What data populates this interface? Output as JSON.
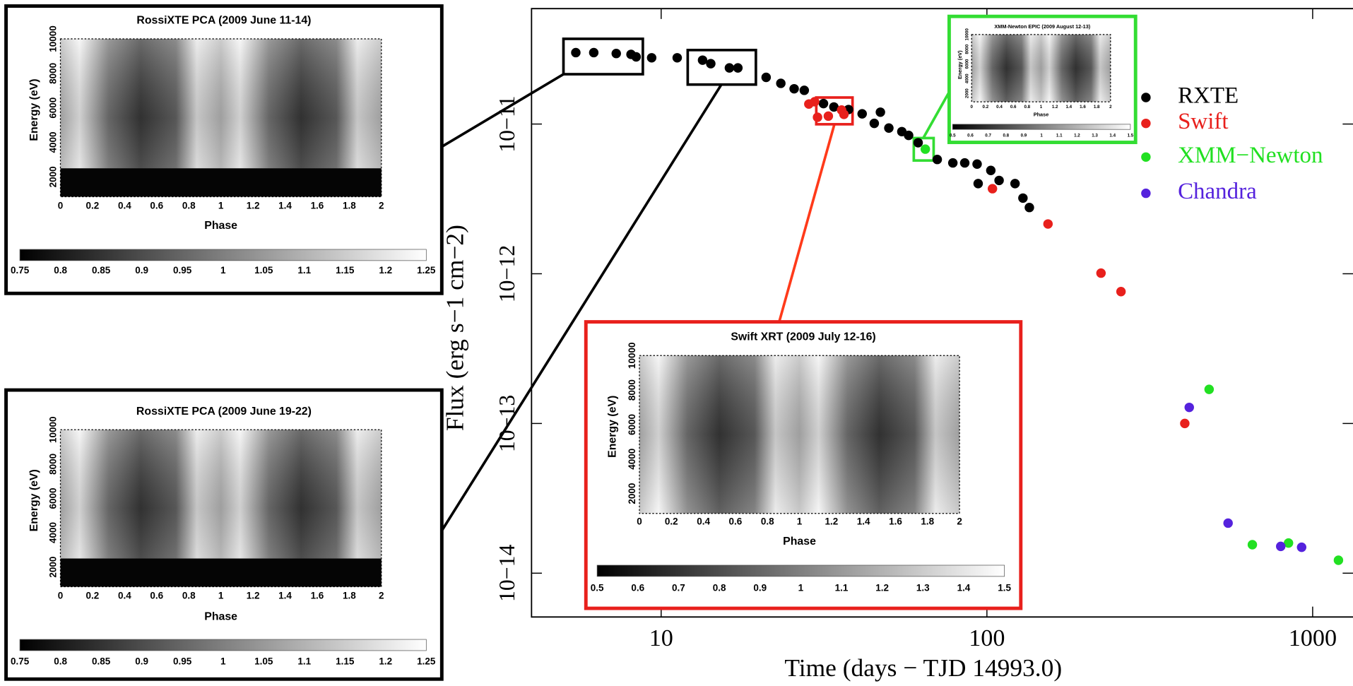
{
  "chart_data": {
    "type": "scatter",
    "xlabel": "Time (days − TJD 14993.0)",
    "ylabel": "Flux (erg s−1 cm−2)",
    "log_x": true,
    "log_y": true,
    "legend": "right",
    "xlim": [
      4.0,
      1330
    ],
    "ylim": [
      5.1e-15,
      5.9e-11
    ],
    "xticks": [
      10,
      100,
      1000
    ],
    "yticks": [
      {
        "value": 1e-14,
        "label": "10−14"
      },
      {
        "value": 1e-13,
        "label": "10−13"
      },
      {
        "value": 1e-12,
        "label": "10−12"
      },
      {
        "value": 1e-11,
        "label": "10−11"
      }
    ],
    "series": [
      {
        "name": "RXTE",
        "color": "#000000",
        "x": [
          5.47,
          6.21,
          7.28,
          8.08,
          8.38,
          9.35,
          11.2,
          13.4,
          14.2,
          16.2,
          17.2,
          21.0,
          23.3,
          25.6,
          27.5,
          31.5,
          33.9,
          37.6,
          41.4,
          45.1,
          47.1,
          50.0,
          54.8,
          57.5,
          61.5,
          70.4,
          78.6,
          85.5,
          93.3,
          94.0,
          102.8,
          109,
          122,
          129,
          135
        ],
        "values": [
          3e-11,
          3e-11,
          2.96e-11,
          2.92e-11,
          2.81e-11,
          2.77e-11,
          2.77e-11,
          2.67e-11,
          2.53e-11,
          2.37e-11,
          2.37e-11,
          2.05e-11,
          1.87e-11,
          1.72e-11,
          1.68e-11,
          1.37e-11,
          1.3e-11,
          1.25e-11,
          1.17e-11,
          1.01e-11,
          1.2e-11,
          9.4e-12,
          8.9e-12,
          8.4e-12,
          7.5e-12,
          5.8e-12,
          5.5e-12,
          5.5e-12,
          5.4e-12,
          4e-12,
          4.9e-12,
          4.2e-12,
          4e-12,
          3.2e-12,
          2.77e-12
        ]
      },
      {
        "name": "Swift",
        "color": "#e8201c",
        "x": [
          28.4,
          29.6,
          30.2,
          32.6,
          35.8,
          36.4,
          104,
          154,
          224,
          258,
          405
        ],
        "values": [
          1.36e-11,
          1.41e-11,
          1.11e-11,
          1.13e-11,
          1.24e-11,
          1.16e-11,
          3.7e-12,
          2.15e-12,
          1.01e-12,
          7.6e-13,
          1e-13
        ]
      },
      {
        "name": "XMM−Newton",
        "color": "#22e022",
        "x": [
          64.7,
          481,
          653,
          843,
          1200
        ],
        "values": [
          6.8e-12,
          1.69e-13,
          1.55e-14,
          1.59e-14,
          1.22e-14
        ]
      },
      {
        "name": "Chandra",
        "color": "#5522dd",
        "x": [
          418,
          550,
          798,
          925
        ],
        "values": [
          1.28e-13,
          2.16e-14,
          1.51e-14,
          1.49e-14
        ]
      }
    ]
  },
  "insets": [
    {
      "title": "RossiXTE PCA (2009 June 11-14)",
      "ylabel": "Energy (eV)",
      "xlabel": "Phase",
      "yticks": [
        "2000",
        "4000",
        "6000",
        "8000",
        "10000"
      ],
      "xticks": [
        "0",
        "0.2",
        "0.4",
        "0.6",
        "0.8",
        "1",
        "1.2",
        "1.4",
        "1.6",
        "1.8",
        "2"
      ],
      "colorbar": [
        "0.75",
        "0.8",
        "0.85",
        "0.9",
        "0.95",
        "1",
        "1.05",
        "1.1",
        "1.15",
        "1.2",
        "1.25"
      ]
    },
    {
      "title": "RossiXTE PCA (2009 June 19-22)",
      "ylabel": "Energy (eV)",
      "xlabel": "Phase",
      "yticks": [
        "2000",
        "4000",
        "6000",
        "8000",
        "10000"
      ],
      "xticks": [
        "0",
        "0.2",
        "0.4",
        "0.6",
        "0.8",
        "1",
        "1.2",
        "1.4",
        "1.6",
        "1.8",
        "2"
      ],
      "colorbar": [
        "0.75",
        "0.8",
        "0.85",
        "0.9",
        "0.95",
        "1",
        "1.05",
        "1.1",
        "1.15",
        "1.2",
        "1.25"
      ]
    },
    {
      "title": "Swift XRT (2009 July 12-16)",
      "ylabel": "Energy (eV)",
      "xlabel": "Phase",
      "yticks": [
        "2000",
        "4000",
        "6000",
        "8000",
        "10000"
      ],
      "xticks": [
        "0",
        "0.2",
        "0.4",
        "0.6",
        "0.8",
        "1",
        "1.2",
        "1.4",
        "1.6",
        "1.8",
        "2"
      ],
      "colorbar": [
        "0.5",
        "0.6",
        "0.7",
        "0.8",
        "0.9",
        "1",
        "1.1",
        "1.2",
        "1.3",
        "1.4",
        "1.5"
      ]
    },
    {
      "title": "XMM-Newton EPIC (2009 August 12-13)",
      "ylabel": "Energy (eV)",
      "xlabel": "Phase",
      "yticks": [
        "2000",
        "4000",
        "6000",
        "8000",
        "10000"
      ],
      "xticks": [
        "0",
        "0.2",
        "0.4",
        "0.6",
        "0.8",
        "1",
        "1.2",
        "1.4",
        "1.6",
        "1.8",
        "2"
      ],
      "colorbar": [
        "0.5",
        "0.6",
        "0.7",
        "0.8",
        "0.9",
        "1",
        "1.1",
        "1.2",
        "1.3",
        "1.4",
        "1.5"
      ]
    }
  ]
}
